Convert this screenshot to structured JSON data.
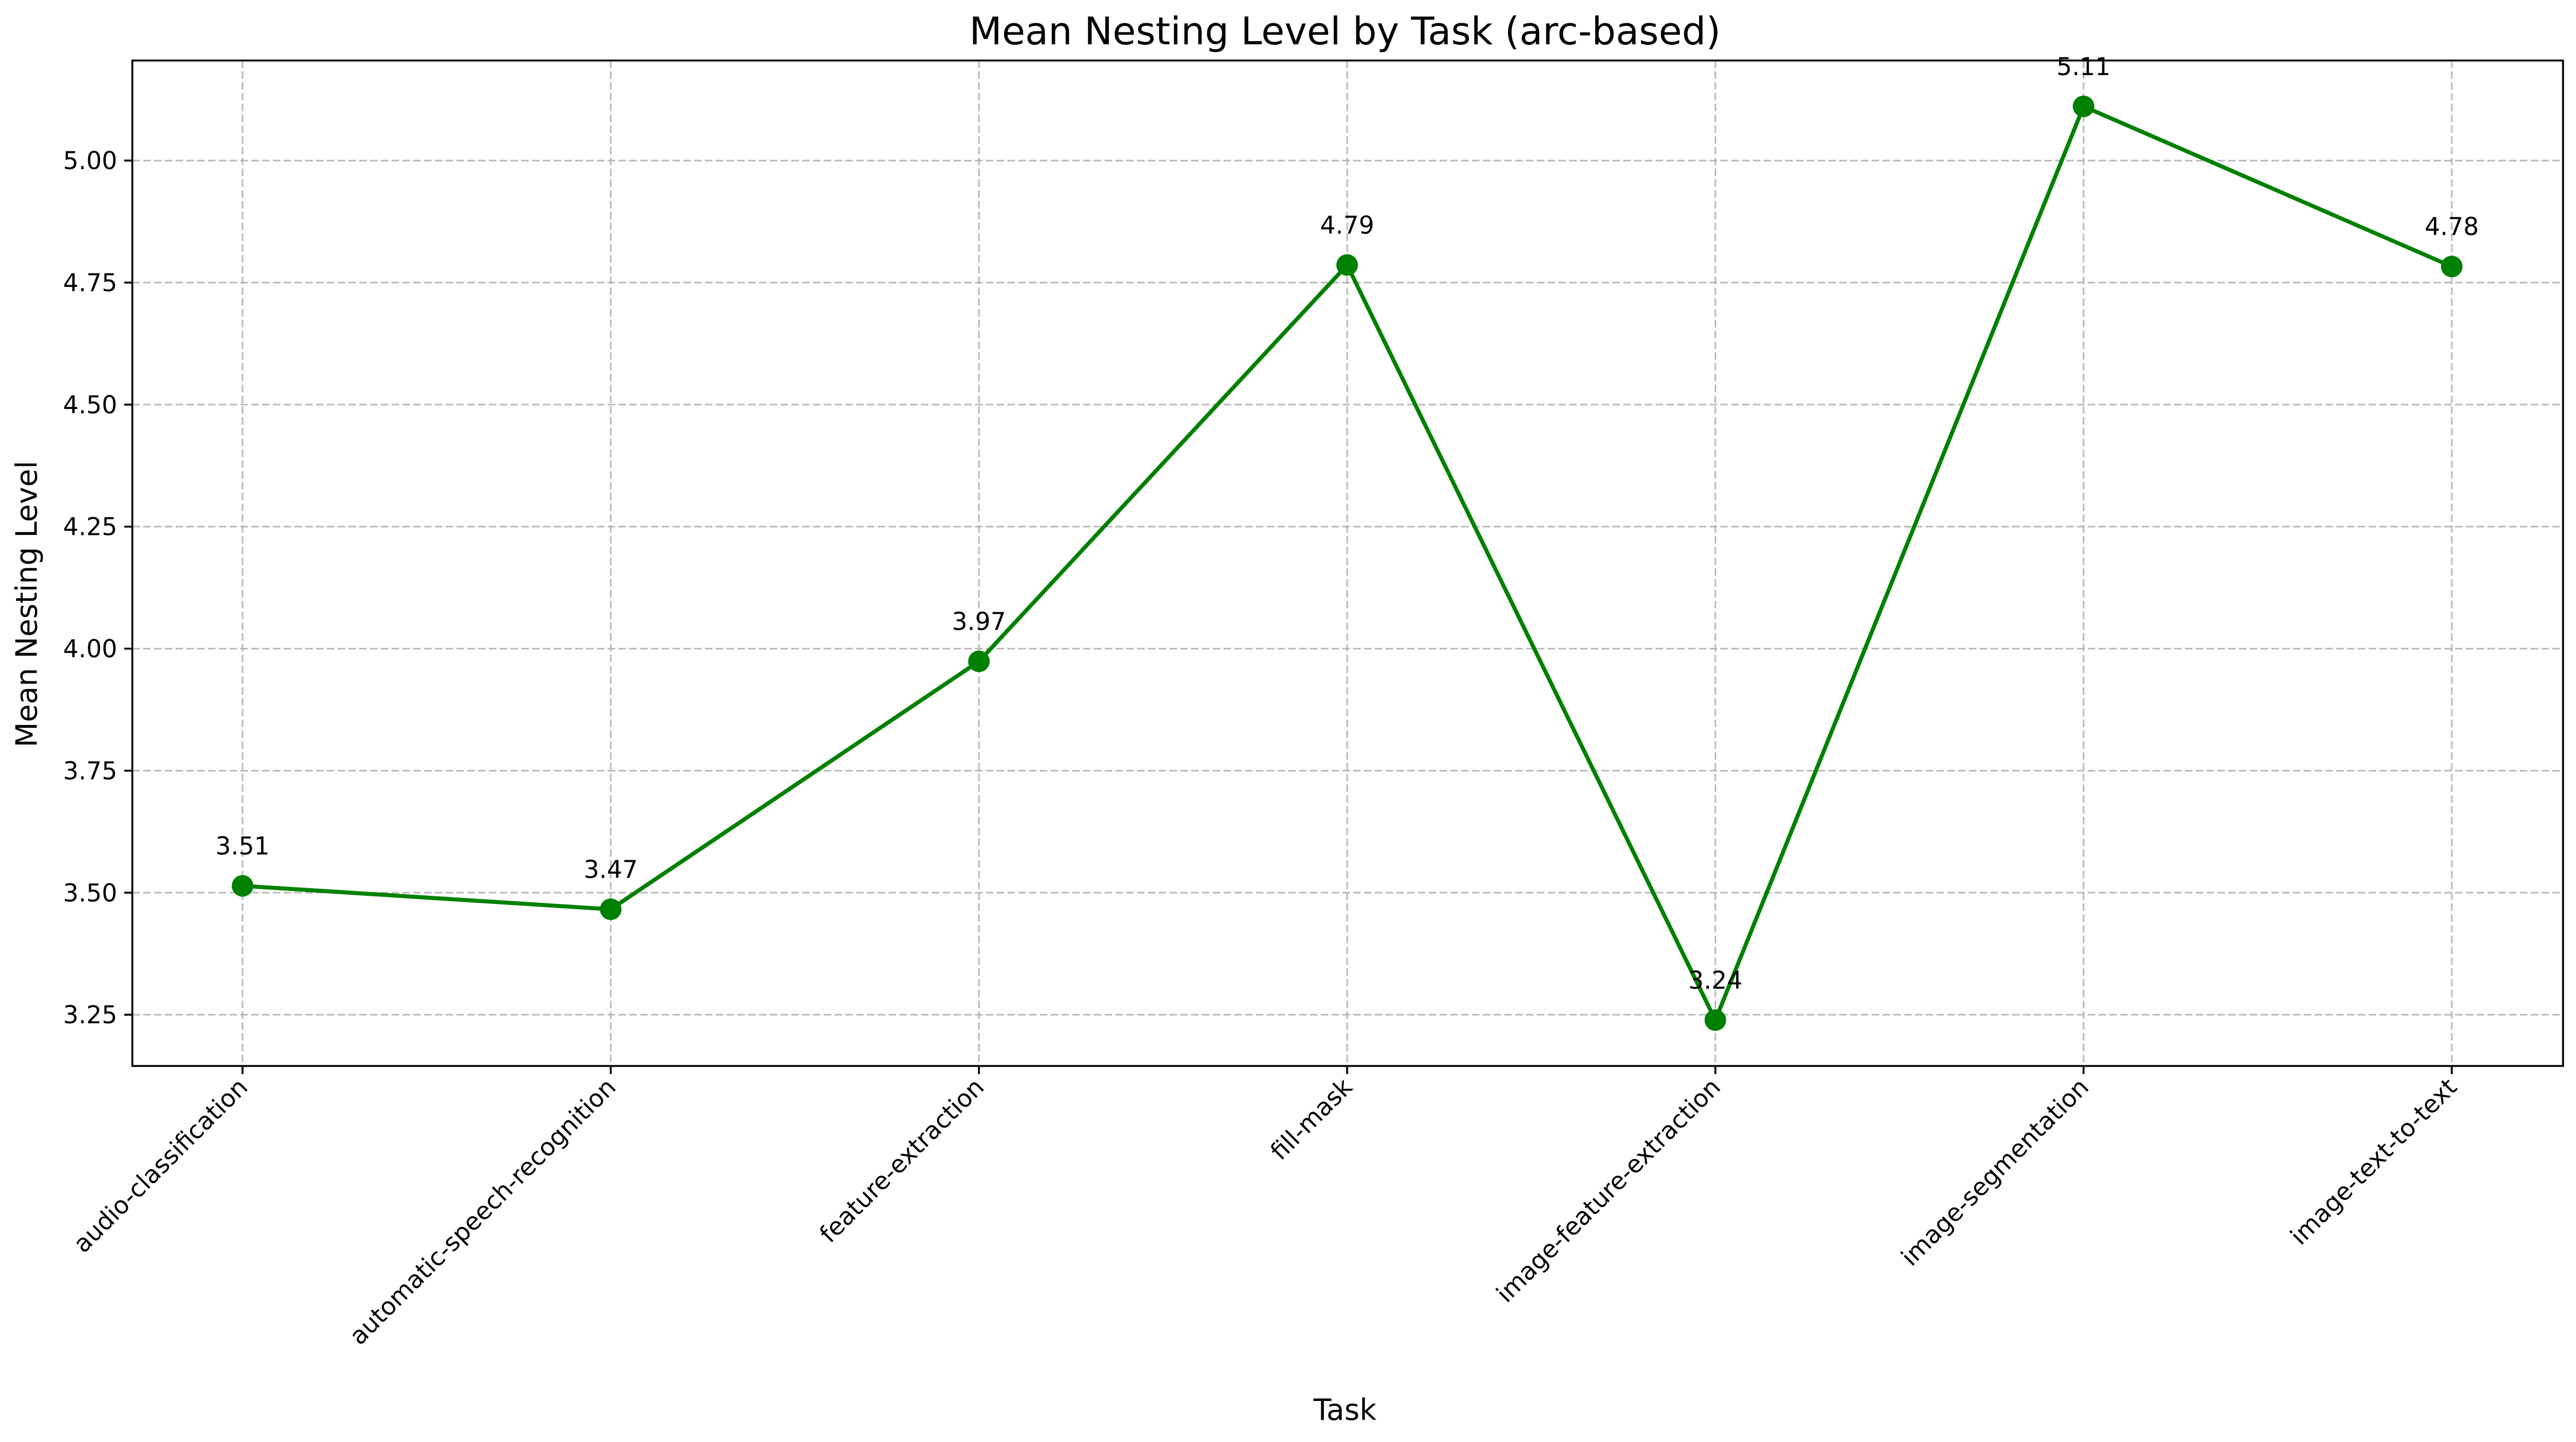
{
  "chart_data": {
    "type": "line",
    "title": "Mean Nesting Level by Task (arc-based)",
    "xlabel": "Task",
    "ylabel": "Mean Nesting Level",
    "categories": [
      "audio-classification",
      "automatic-speech-recognition",
      "feature-extraction",
      "fill-mask",
      "image-feature-extraction",
      "image-segmentation",
      "image-text-to-text"
    ],
    "series": [
      {
        "values": [
          3.514,
          3.466,
          3.974,
          4.786,
          3.239,
          5.111,
          4.783
        ],
        "data_labels": [
          "3.51",
          "3.47",
          "3.97",
          "4.79",
          "3.24",
          "5.11",
          "4.78"
        ],
        "color": "#008000",
        "marker": "circle"
      }
    ],
    "ylim": [
      3.145,
      5.205
    ],
    "yticks": [
      3.25,
      3.5,
      3.75,
      4.0,
      4.25,
      4.5,
      4.75,
      5.0
    ],
    "ytick_labels": [
      "3.25",
      "3.50",
      "3.75",
      "4.00",
      "4.25",
      "4.50",
      "4.75",
      "5.00"
    ],
    "grid": true,
    "legend": "none"
  }
}
